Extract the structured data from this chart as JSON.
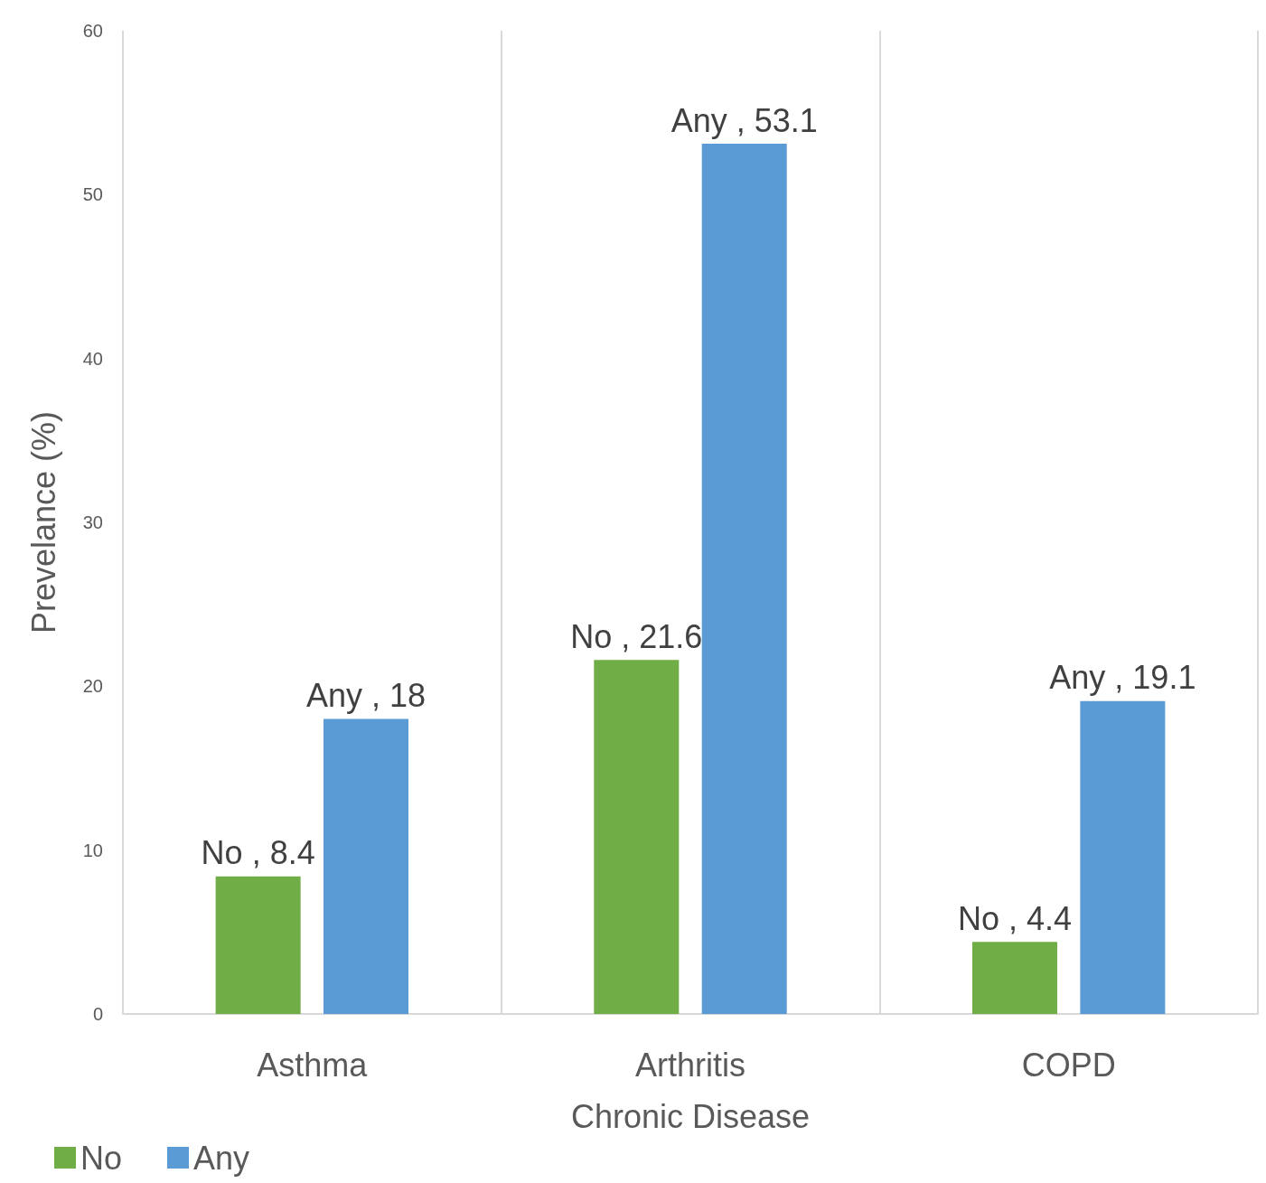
{
  "chart_data": {
    "type": "bar",
    "xlabel": "Chronic Disease",
    "ylabel": "Prevelance (%)",
    "categories": [
      "Asthma",
      "Arthritis",
      "COPD"
    ],
    "series": [
      {
        "name": "No",
        "color": "#70ad47",
        "values": [
          8.4,
          21.6,
          4.4
        ],
        "value_labels": [
          "No , 8.4",
          "No , 21.6",
          "No , 4.4"
        ]
      },
      {
        "name": "Any",
        "color": "#5b9bd5",
        "values": [
          18,
          53.1,
          19.1
        ],
        "value_labels": [
          "Any , 18",
          "Any , 53.1",
          "Any , 19.1"
        ]
      }
    ],
    "ylim": [
      0,
      60
    ],
    "yticks": [
      0,
      10,
      20,
      30,
      40,
      50,
      60
    ],
    "grid": "x",
    "legend": "bottom left"
  }
}
